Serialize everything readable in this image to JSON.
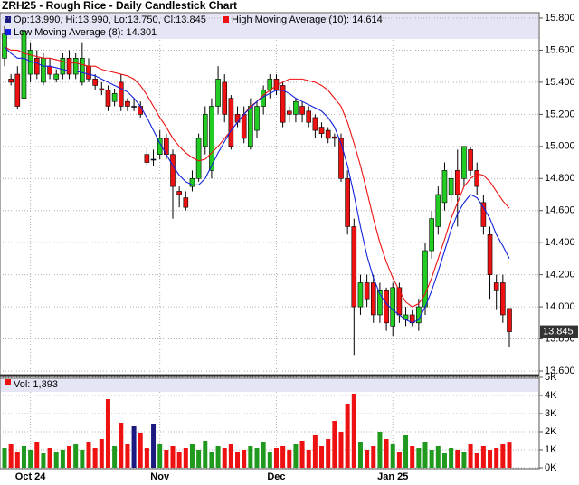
{
  "chart_data": [
    {
      "type": "candlestick",
      "title": "ZRH25 - Rough Rice - Daily Candlestick Chart",
      "info": "Op:13.990, Hi:13.990, Lo:13.750, Cl:13.845",
      "up_color": "#22cc22",
      "down_color": "#ee1111",
      "flat_color": "#1a1a80",
      "open": [
        15.55,
        15.42,
        15.45,
        15.3,
        15.45,
        15.55,
        15.4,
        15.5,
        15.42,
        15.45,
        15.55,
        15.45,
        15.4,
        15.5,
        15.42,
        15.36,
        15.35,
        15.28,
        15.4,
        15.28,
        15.25,
        15.25,
        14.95,
        14.92,
        14.95,
        15.05,
        14.95,
        14.72,
        14.68,
        14.75,
        14.8,
        15.0,
        14.85,
        15.25,
        15.4,
        15.3,
        15.2,
        15.2,
        15.0,
        15.1,
        15.25,
        15.35,
        15.42,
        15.38,
        15.22,
        15.2,
        15.25,
        15.22,
        15.18,
        15.12,
        15.1,
        15.06,
        15.05,
        14.8,
        14.5,
        14.0,
        14.15,
        14.15,
        13.95,
        14.1,
        13.88,
        14.12,
        13.92,
        13.95,
        13.9,
        14.0,
        14.35,
        14.5,
        14.65,
        14.7,
        14.85,
        14.8,
        14.98,
        14.85,
        14.65,
        14.45,
        14.15,
        14.15,
        13.99
      ],
      "high": [
        15.75,
        15.45,
        15.5,
        15.8,
        15.65,
        15.6,
        15.58,
        15.55,
        15.48,
        15.58,
        15.6,
        15.58,
        15.65,
        15.55,
        15.45,
        15.4,
        15.38,
        15.36,
        15.45,
        15.3,
        15.3,
        15.28,
        15.0,
        14.98,
        15.1,
        15.08,
        14.98,
        14.75,
        14.72,
        14.85,
        15.08,
        15.25,
        15.3,
        15.5,
        15.45,
        15.32,
        15.25,
        15.25,
        15.3,
        15.28,
        15.38,
        15.45,
        15.45,
        15.4,
        15.25,
        15.3,
        15.28,
        15.25,
        15.2,
        15.15,
        15.12,
        15.08,
        15.08,
        14.85,
        14.55,
        14.2,
        14.2,
        14.2,
        14.15,
        14.12,
        14.15,
        14.15,
        14.0,
        13.98,
        14.05,
        14.4,
        14.6,
        14.75,
        14.9,
        14.85,
        14.98,
        15.0,
        15.0,
        14.9,
        14.7,
        14.5,
        14.2,
        14.2,
        13.99
      ],
      "low": [
        15.5,
        15.38,
        15.23,
        15.28,
        15.4,
        15.42,
        15.38,
        15.42,
        15.4,
        15.42,
        15.42,
        15.42,
        15.38,
        15.4,
        15.35,
        15.32,
        15.22,
        15.25,
        15.22,
        15.22,
        15.22,
        15.18,
        14.88,
        14.88,
        14.92,
        14.92,
        14.55,
        14.62,
        14.6,
        14.72,
        14.78,
        14.95,
        14.8,
        15.2,
        15.15,
        14.98,
        15.12,
        15.02,
        14.98,
        15.05,
        15.2,
        15.3,
        15.32,
        15.12,
        15.15,
        15.15,
        15.15,
        15.12,
        15.05,
        15.05,
        15.02,
        15.0,
        14.78,
        14.45,
        13.7,
        13.95,
        14.0,
        13.9,
        13.9,
        13.85,
        13.82,
        13.9,
        13.88,
        13.88,
        13.85,
        13.95,
        14.3,
        14.45,
        14.6,
        14.65,
        14.5,
        14.75,
        14.82,
        14.7,
        14.45,
        14.05,
        13.98,
        13.9,
        13.75
      ],
      "close": [
        15.7,
        15.4,
        15.25,
        15.72,
        15.6,
        15.45,
        15.55,
        15.45,
        15.45,
        15.55,
        15.45,
        15.55,
        15.55,
        15.42,
        15.38,
        15.35,
        15.25,
        15.33,
        15.25,
        15.25,
        15.25,
        15.2,
        14.9,
        14.92,
        15.05,
        14.95,
        14.75,
        14.7,
        14.62,
        14.8,
        15.05,
        15.2,
        15.25,
        15.42,
        15.2,
        15.0,
        15.15,
        15.05,
        15.25,
        15.25,
        15.35,
        15.42,
        15.35,
        15.15,
        15.2,
        15.28,
        15.2,
        15.15,
        15.1,
        15.08,
        15.05,
        15.05,
        14.8,
        14.5,
        14.0,
        14.15,
        14.05,
        13.95,
        14.1,
        13.9,
        14.12,
        13.95,
        13.95,
        13.9,
        14.0,
        14.35,
        14.55,
        14.7,
        14.85,
        14.8,
        14.7,
        15.0,
        14.85,
        14.75,
        14.5,
        14.2,
        14.1,
        13.95,
        13.845
      ],
      "series": [
        {
          "name": "High Moving Average (10): 14.614",
          "color": "#ee1111",
          "values": [
            15.62,
            15.6,
            15.6,
            15.58,
            15.57,
            15.56,
            15.55,
            15.55,
            15.54,
            15.53,
            15.52,
            15.52,
            15.51,
            15.5,
            15.5,
            15.48,
            15.47,
            15.46,
            15.45,
            15.44,
            15.42,
            15.38,
            15.32,
            15.25,
            15.18,
            15.12,
            15.05,
            15.0,
            14.96,
            14.93,
            14.91,
            14.92,
            14.96,
            15.0,
            15.05,
            15.1,
            15.15,
            15.2,
            15.25,
            15.28,
            15.32,
            15.35,
            15.38,
            15.4,
            15.42,
            15.42,
            15.42,
            15.41,
            15.4,
            15.38,
            15.35,
            15.3,
            15.25,
            15.15,
            15.02,
            14.88,
            14.72,
            14.55,
            14.4,
            14.28,
            14.18,
            14.1,
            14.03,
            14.0,
            14.02,
            14.08,
            14.18,
            14.3,
            14.42,
            14.55,
            14.65,
            14.75,
            14.8,
            14.83,
            14.82,
            14.78,
            14.72,
            14.66,
            14.614
          ]
        },
        {
          "name": "Low Moving Average (8): 14.301",
          "color": "#1122dd",
          "values": [
            15.62,
            15.58,
            15.55,
            15.55,
            15.53,
            15.52,
            15.5,
            15.5,
            15.49,
            15.48,
            15.47,
            15.47,
            15.46,
            15.45,
            15.44,
            15.42,
            15.4,
            15.38,
            15.36,
            15.34,
            15.3,
            15.25,
            15.18,
            15.1,
            15.02,
            14.95,
            14.88,
            14.82,
            14.78,
            14.76,
            14.76,
            14.8,
            14.88,
            14.96,
            15.03,
            15.1,
            15.15,
            15.2,
            15.24,
            15.28,
            15.31,
            15.33,
            15.35,
            15.35,
            15.33,
            15.3,
            15.28,
            15.26,
            15.24,
            15.22,
            15.18,
            15.12,
            15.02,
            14.88,
            14.7,
            14.5,
            14.32,
            14.18,
            14.08,
            14.02,
            13.98,
            13.95,
            13.92,
            13.9,
            13.92,
            14.0,
            14.1,
            14.22,
            14.35,
            14.48,
            14.58,
            14.65,
            14.7,
            14.68,
            14.62,
            14.55,
            14.45,
            14.38,
            14.301
          ]
        }
      ],
      "ylim": [
        13.6,
        15.8
      ],
      "yticks": [
        {
          "value": 13.6,
          "label": "13.600"
        },
        {
          "value": 13.8,
          "label": "13.800"
        },
        {
          "value": 14.0,
          "label": "14.000"
        },
        {
          "value": 14.2,
          "label": "14.200"
        },
        {
          "value": 14.4,
          "label": "14.400"
        },
        {
          "value": 14.6,
          "label": "14.600"
        },
        {
          "value": 14.8,
          "label": "14.800"
        },
        {
          "value": 15.0,
          "label": "15.000"
        },
        {
          "value": 15.2,
          "label": "15.200"
        },
        {
          "value": 15.4,
          "label": "15.400"
        },
        {
          "value": 15.6,
          "label": "15.600"
        },
        {
          "value": 15.8,
          "label": "15.800"
        }
      ],
      "grid": true
    },
    {
      "type": "bar",
      "legend": "Vol: 1,393",
      "categories": [
        null,
        null,
        null,
        null,
        "Oct 24",
        null,
        null,
        null,
        null,
        null,
        null,
        null,
        null,
        null,
        null,
        null,
        null,
        null,
        null,
        null,
        null,
        null,
        null,
        null,
        "Nov",
        null,
        null,
        null,
        null,
        null,
        null,
        null,
        null,
        null,
        null,
        null,
        null,
        null,
        null,
        null,
        null,
        null,
        "Dec",
        null,
        null,
        null,
        null,
        null,
        null,
        null,
        null,
        null,
        null,
        null,
        null,
        null,
        null,
        null,
        null,
        null,
        "Jan 25",
        null,
        null,
        null,
        null,
        null,
        null,
        null,
        null,
        null,
        null,
        null,
        null,
        null,
        null,
        null,
        null,
        null,
        null
      ],
      "values": [
        1100,
        1300,
        900,
        1200,
        1000,
        1400,
        800,
        1100,
        900,
        1000,
        1200,
        1300,
        1000,
        1400,
        1100,
        1600,
        3800,
        1200,
        2500,
        1300,
        2300,
        1900,
        1100,
        2400,
        1300,
        1000,
        1200,
        900,
        1100,
        1300,
        1000,
        1500,
        900,
        1200,
        1100,
        1300,
        900,
        1000,
        1200,
        1100,
        1400,
        900,
        1100,
        1200,
        1000,
        1300,
        1500,
        1000,
        1800,
        1200,
        1600,
        2600,
        2000,
        3500,
        4100,
        1400,
        1000,
        1200,
        2000,
        1600,
        1300,
        900,
        1800,
        1200,
        1100,
        1400,
        1000,
        1200,
        800,
        1100,
        1000,
        900,
        1300,
        800,
        1200,
        1000,
        1100,
        1300,
        1393
      ],
      "ylim": [
        0,
        5000
      ],
      "yticks": [
        {
          "value": 0,
          "label": "0K"
        },
        {
          "value": 1000,
          "label": "1K"
        },
        {
          "value": 2000,
          "label": "2K"
        },
        {
          "value": 3000,
          "label": "3K"
        },
        {
          "value": 4000,
          "label": "4K"
        },
        {
          "value": 5000,
          "label": "5K"
        }
      ],
      "grid": true
    }
  ]
}
